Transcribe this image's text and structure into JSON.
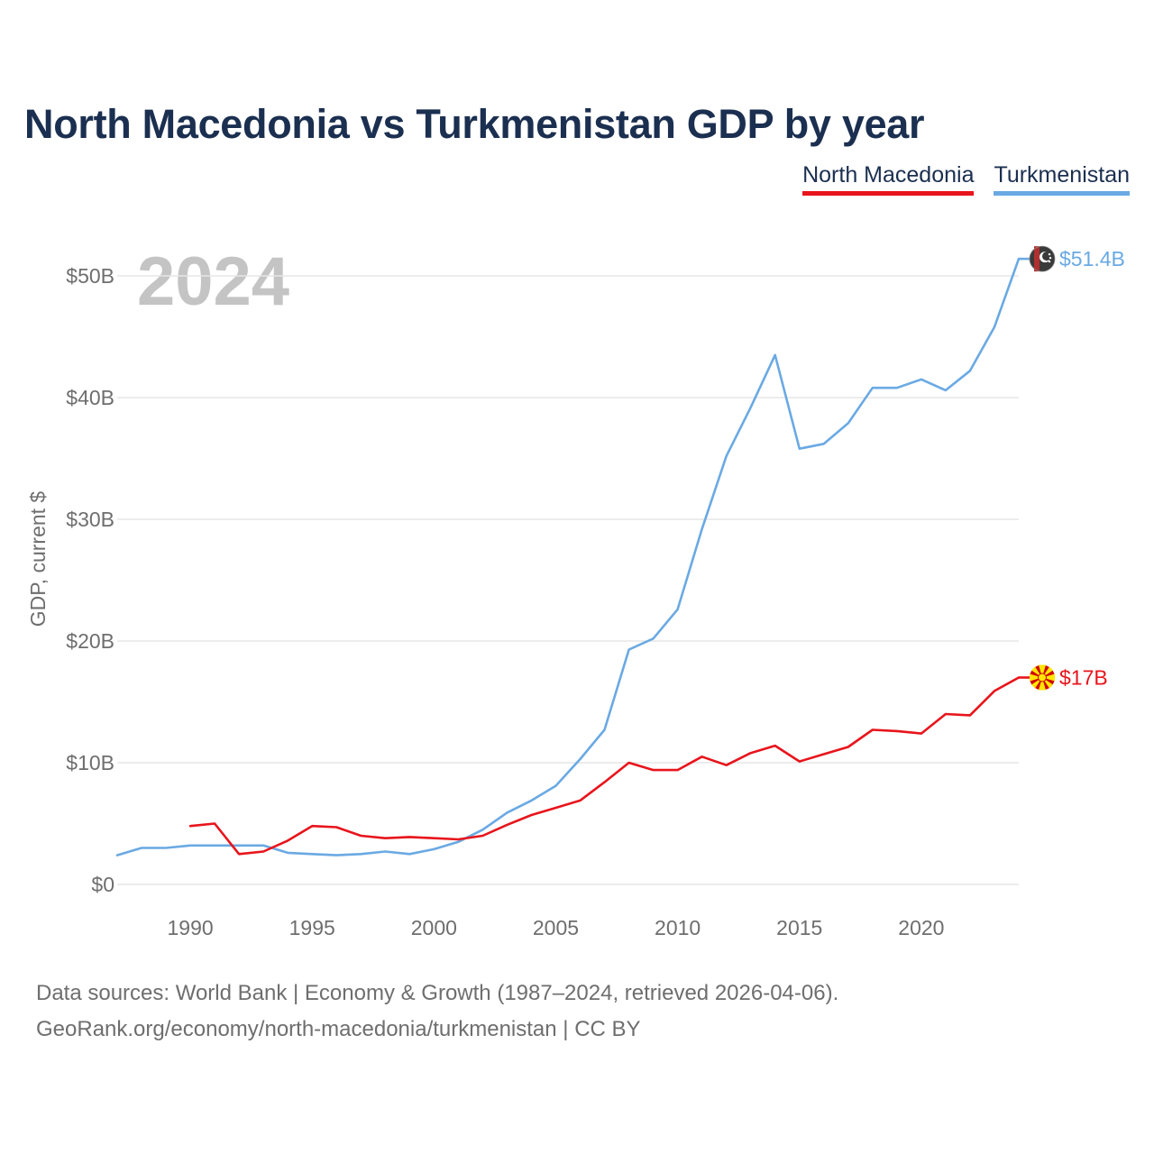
{
  "chart_data": {
    "type": "line",
    "title": "North Macedonia vs Turkmenistan GDP by year",
    "ylabel": "GDP, current $",
    "xlabel": "",
    "year_label": "2024",
    "xlim": [
      1987,
      2024
    ],
    "ylim": [
      0,
      55
    ],
    "x_ticks": [
      "1990",
      "1995",
      "2000",
      "2005",
      "2010",
      "2015",
      "2020"
    ],
    "y_ticks": [
      {
        "value": 0,
        "label": "$0"
      },
      {
        "value": 10,
        "label": "$10B"
      },
      {
        "value": 20,
        "label": "$20B"
      },
      {
        "value": 30,
        "label": "$30B"
      },
      {
        "value": 40,
        "label": "$40B"
      },
      {
        "value": 50,
        "label": "$50B"
      }
    ],
    "legend": [
      "North Macedonia",
      "Turkmenistan"
    ],
    "series": [
      {
        "name": "North Macedonia",
        "color": "#e8141b",
        "end_label": "$17B",
        "x": [
          1990,
          1991,
          1992,
          1993,
          1994,
          1995,
          1996,
          1997,
          1998,
          1999,
          2000,
          2001,
          2002,
          2003,
          2004,
          2005,
          2006,
          2007,
          2008,
          2009,
          2010,
          2011,
          2012,
          2013,
          2014,
          2015,
          2016,
          2017,
          2018,
          2019,
          2020,
          2021,
          2022,
          2023,
          2024
        ],
        "values": [
          4.8,
          5.0,
          2.5,
          2.7,
          3.6,
          4.8,
          4.7,
          4.0,
          3.8,
          3.9,
          3.8,
          3.7,
          4.0,
          4.9,
          5.7,
          6.3,
          6.9,
          8.4,
          10.0,
          9.4,
          9.4,
          10.5,
          9.8,
          10.8,
          11.4,
          10.1,
          10.7,
          11.3,
          12.7,
          12.6,
          12.4,
          14.0,
          13.9,
          15.9,
          17.0
        ]
      },
      {
        "name": "Turkmenistan",
        "color": "#6aa9e3",
        "end_label": "$51.4B",
        "x": [
          1987,
          1988,
          1989,
          1990,
          1991,
          1992,
          1993,
          1994,
          1995,
          1996,
          1997,
          1998,
          1999,
          2000,
          2001,
          2002,
          2003,
          2004,
          2005,
          2006,
          2007,
          2008,
          2009,
          2010,
          2011,
          2012,
          2013,
          2014,
          2015,
          2016,
          2017,
          2018,
          2019,
          2020,
          2021,
          2022,
          2023,
          2024
        ],
        "values": [
          2.4,
          3.0,
          3.0,
          3.2,
          3.2,
          3.2,
          3.2,
          2.6,
          2.5,
          2.4,
          2.5,
          2.7,
          2.5,
          2.9,
          3.5,
          4.5,
          5.9,
          6.9,
          8.1,
          10.3,
          12.7,
          19.3,
          20.2,
          22.6,
          29.2,
          35.2,
          39.2,
          43.5,
          35.8,
          36.2,
          37.9,
          40.8,
          40.8,
          41.5,
          40.6,
          42.2,
          45.8,
          51.4
        ]
      }
    ]
  },
  "footer": {
    "line1": "Data sources: World Bank | Economy & Growth (1987–2024, retrieved 2026-04-06).",
    "line2": "GeoRank.org/economy/north-macedonia/turkmenistan | CC BY"
  }
}
